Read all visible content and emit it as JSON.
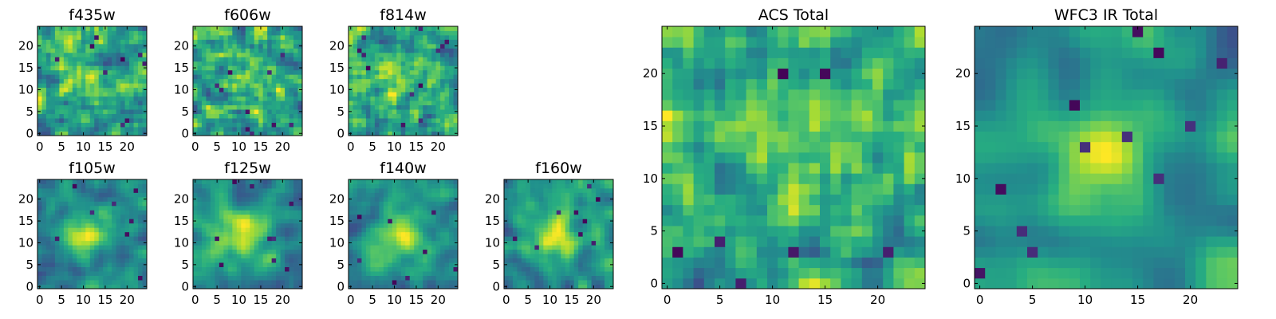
{
  "figure": {
    "background": "#ffffff"
  },
  "chart_data": [
    {
      "id": "f435w",
      "type": "heatmap",
      "title": "f435w",
      "shape": [
        25,
        25
      ],
      "smooth": 0.6,
      "seed": 11,
      "deep_cells": 9,
      "xticks": [
        0,
        5,
        10,
        15,
        20
      ],
      "yticks": [
        0,
        5,
        10,
        15,
        20
      ],
      "xlim": [
        0,
        24
      ],
      "ylim": [
        0,
        24
      ],
      "colormap": "viridis"
    },
    {
      "id": "f606w",
      "type": "heatmap",
      "title": "f606w",
      "shape": [
        25,
        25
      ],
      "smooth": 0.6,
      "seed": 23,
      "deep_cells": 10,
      "xticks": [
        0,
        5,
        10,
        15,
        20
      ],
      "yticks": [
        0,
        5,
        10,
        15,
        20
      ],
      "xlim": [
        0,
        24
      ],
      "ylim": [
        0,
        24
      ],
      "colormap": "viridis"
    },
    {
      "id": "f814w",
      "type": "heatmap",
      "title": "f814w",
      "shape": [
        25,
        25
      ],
      "smooth": 0.6,
      "seed": 37,
      "deep_cells": 12,
      "xticks": [
        0,
        5,
        10,
        15,
        20
      ],
      "yticks": [
        0,
        5,
        10,
        15,
        20
      ],
      "xlim": [
        0,
        24
      ],
      "ylim": [
        0,
        24
      ],
      "colormap": "viridis"
    },
    {
      "id": "f105w",
      "type": "heatmap",
      "title": "f105w",
      "shape": [
        25,
        25
      ],
      "smooth": 1.0,
      "seed": 41,
      "deep_cells": 8,
      "xticks": [
        0,
        5,
        10,
        15,
        20
      ],
      "yticks": [
        0,
        5,
        10,
        15,
        20
      ],
      "xlim": [
        0,
        24
      ],
      "ylim": [
        0,
        24
      ],
      "colormap": "viridis"
    },
    {
      "id": "f125w",
      "type": "heatmap",
      "title": "f125w",
      "shape": [
        25,
        25
      ],
      "smooth": 1.0,
      "seed": 53,
      "deep_cells": 9,
      "xticks": [
        0,
        5,
        10,
        15,
        20
      ],
      "yticks": [
        0,
        5,
        10,
        15,
        20
      ],
      "xlim": [
        0,
        24
      ],
      "ylim": [
        0,
        24
      ],
      "colormap": "viridis"
    },
    {
      "id": "f140w",
      "type": "heatmap",
      "title": "f140w",
      "shape": [
        25,
        25
      ],
      "smooth": 1.0,
      "seed": 67,
      "deep_cells": 8,
      "xticks": [
        0,
        5,
        10,
        15,
        20
      ],
      "yticks": [
        0,
        5,
        10,
        15,
        20
      ],
      "xlim": [
        0,
        24
      ],
      "ylim": [
        0,
        24
      ],
      "colormap": "viridis"
    },
    {
      "id": "f160w",
      "type": "heatmap",
      "title": "f160w",
      "shape": [
        25,
        25
      ],
      "smooth": 1.0,
      "seed": 79,
      "deep_cells": 9,
      "xticks": [
        0,
        5,
        10,
        15,
        20
      ],
      "yticks": [
        0,
        5,
        10,
        15,
        20
      ],
      "xlim": [
        0,
        24
      ],
      "ylim": [
        0,
        24
      ],
      "colormap": "viridis"
    },
    {
      "id": "acs-total",
      "type": "heatmap",
      "title": "ACS Total",
      "shape": [
        25,
        25
      ],
      "smooth": 0.6,
      "seed": 91,
      "deep_cells": 7,
      "xticks": [
        0,
        5,
        10,
        15,
        20
      ],
      "yticks": [
        0,
        5,
        10,
        15,
        20
      ],
      "xlim": [
        0,
        24
      ],
      "ylim": [
        0,
        24
      ],
      "colormap": "viridis"
    },
    {
      "id": "wfc3-ir-total",
      "type": "heatmap",
      "title": "WFC3 IR Total",
      "shape": [
        25,
        25
      ],
      "smooth": 1.5,
      "seed": 103,
      "deep_cells": 12,
      "xticks": [
        0,
        5,
        10,
        15,
        20
      ],
      "yticks": [
        0,
        5,
        10,
        15,
        20
      ],
      "xlim": [
        0,
        24
      ],
      "ylim": [
        0,
        24
      ],
      "colormap": "viridis"
    }
  ]
}
